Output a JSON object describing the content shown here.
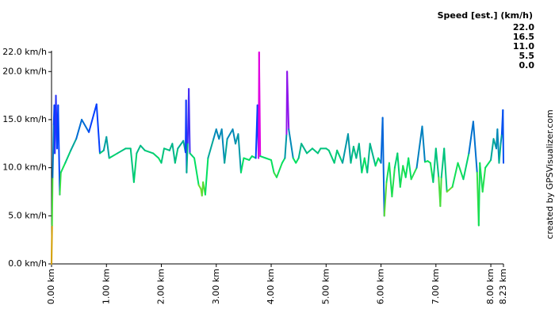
{
  "chart_data": {
    "type": "line",
    "legend_title": "Speed [est.] (km/h)",
    "credit": "created by GPSVisualizer.com",
    "color_scale": [
      {
        "value": 22,
        "label": "22.0",
        "color": "#e000e0"
      },
      {
        "value": 16.5,
        "label": "16.5",
        "color": "#0040ff"
      },
      {
        "value": 11,
        "label": "11.0",
        "color": "#00e060"
      },
      {
        "value": 5.5,
        "label": "5.5",
        "color": "#c8d800"
      },
      {
        "value": 0,
        "label": "0.0",
        "color": "#ee0000"
      }
    ],
    "xlim": [
      0,
      8.23
    ],
    "ylim": [
      0,
      22
    ],
    "xticks": [
      {
        "value": 0,
        "label": "0.00 km"
      },
      {
        "value": 1,
        "label": "1.00 km"
      },
      {
        "value": 2,
        "label": "2.00 km"
      },
      {
        "value": 3,
        "label": "3.00 km"
      },
      {
        "value": 4,
        "label": "4.00 km"
      },
      {
        "value": 5,
        "label": "5.00 km"
      },
      {
        "value": 6,
        "label": "6.00 km"
      },
      {
        "value": 7,
        "label": "7.00 km"
      },
      {
        "value": 8,
        "label": "8.00 km"
      },
      {
        "value": 8.23,
        "label": "8.23 km"
      }
    ],
    "yticks": [
      {
        "value": 0,
        "label": "0.0 km/h"
      },
      {
        "value": 5,
        "label": "5.0 km/h"
      },
      {
        "value": 10,
        "label": "10.0 km/h"
      },
      {
        "value": 15,
        "label": "15.0 km/h"
      },
      {
        "value": 20,
        "label": "20.0 km/h"
      },
      {
        "value": 22,
        "label": "22.0 km/h"
      }
    ],
    "series": [
      {
        "x": [
          0,
          0.01,
          0.02,
          0.04,
          0.05,
          0.06,
          0.08,
          0.1,
          0.12,
          0.15,
          0.17,
          0.25,
          0.35,
          0.45,
          0.55,
          0.68,
          0.82,
          0.88,
          0.95,
          1.0,
          1.05,
          1.2,
          1.35,
          1.44,
          1.5,
          1.55,
          1.62,
          1.7,
          1.85,
          1.95,
          2.0,
          2.05,
          2.15,
          2.2,
          2.25,
          2.3,
          2.4,
          2.44,
          2.45,
          2.46,
          2.48,
          2.5,
          2.52,
          2.6,
          2.68,
          2.72,
          2.74,
          2.76,
          2.8,
          2.85,
          2.95,
          3.0,
          3.05,
          3.1,
          3.15,
          3.2,
          3.3,
          3.35,
          3.4,
          3.45,
          3.5,
          3.6,
          3.65,
          3.72,
          3.75,
          3.77,
          3.78,
          3.8,
          3.9,
          4.0,
          4.05,
          4.1,
          4.2,
          4.25,
          4.28,
          4.29,
          4.32,
          4.4,
          4.45,
          4.5,
          4.55,
          4.65,
          4.75,
          4.85,
          4.9,
          5.0,
          5.05,
          5.15,
          5.2,
          5.3,
          5.4,
          5.45,
          5.5,
          5.55,
          5.6,
          5.65,
          5.7,
          5.75,
          5.8,
          5.9,
          5.95,
          6.0,
          6.03,
          6.06,
          6.1,
          6.15,
          6.2,
          6.25,
          6.3,
          6.35,
          6.4,
          6.45,
          6.5,
          6.55,
          6.65,
          6.75,
          6.8,
          6.85,
          6.9,
          6.95,
          7.0,
          7.05,
          7.08,
          7.1,
          7.15,
          7.2,
          7.3,
          7.4,
          7.5,
          7.6,
          7.68,
          7.75,
          7.78,
          7.8,
          7.85,
          7.9,
          8.0,
          8.05,
          8.1,
          8.12,
          8.15,
          8.18,
          8.2,
          8.22,
          8.23
        ],
        "values": [
          0,
          4,
          9,
          14.5,
          16.5,
          11.5,
          17.5,
          12,
          16.5,
          7.2,
          9.5,
          10.5,
          11.8,
          13,
          15,
          13.7,
          16.6,
          11.5,
          11.8,
          13.2,
          11,
          11.5,
          12,
          12,
          8.5,
          11.5,
          12.3,
          11.8,
          11.5,
          11,
          10.5,
          12,
          11.8,
          12.5,
          10.5,
          12,
          12.8,
          11.6,
          17,
          9.5,
          12.6,
          18.2,
          11.5,
          11,
          8.2,
          7.8,
          7.1,
          8.5,
          7.2,
          11,
          13,
          14,
          13,
          14,
          10.5,
          13,
          14,
          12.5,
          13.5,
          9.5,
          11,
          10.8,
          11.2,
          11,
          16.5,
          11,
          22,
          11.2,
          11,
          10.8,
          9.5,
          9,
          10.5,
          11,
          13.5,
          20,
          14,
          11,
          10.5,
          11,
          12.5,
          11.5,
          12,
          11.5,
          12,
          12,
          11.8,
          10.5,
          11.8,
          10.5,
          13.5,
          10.5,
          12.2,
          11,
          12.5,
          9.5,
          11,
          9.5,
          12.5,
          10.2,
          11,
          10.5,
          15.2,
          5,
          8.5,
          10.5,
          7,
          10,
          11.5,
          8,
          10.2,
          9,
          11,
          8.8,
          10,
          14.3,
          10.6,
          10.7,
          10.5,
          8.5,
          12,
          9,
          6,
          9,
          12,
          7.5,
          8,
          10.5,
          8.8,
          11.5,
          14.8,
          9.5,
          4,
          10.5,
          7.5,
          10,
          10.8,
          13,
          12,
          14,
          10.5,
          12.5,
          13.5,
          16,
          10.5
        ]
      }
    ]
  }
}
